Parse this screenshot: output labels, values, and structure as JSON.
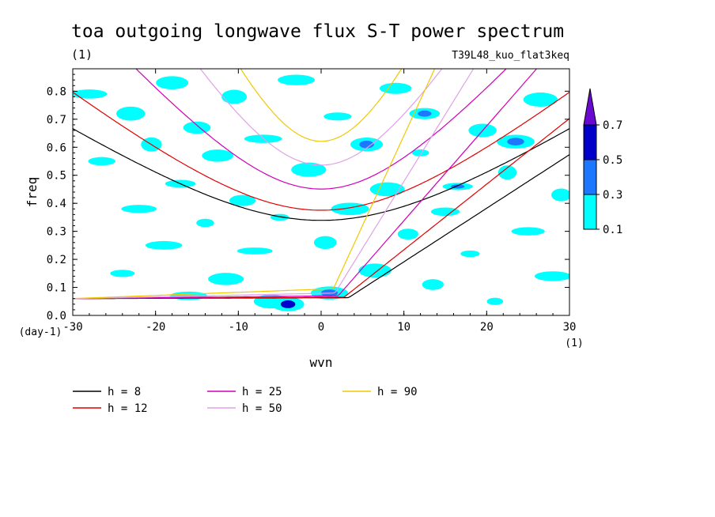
{
  "chart_data": {
    "type": "contour",
    "title": "toa outgoing longwave flux S-T power spectrum",
    "subtitle_left": "(1)",
    "subtitle_right": "T39L48_kuo_flat3keq",
    "xlabel": "wvn",
    "ylabel": "freq",
    "x_unit_label": "(1)",
    "y_unit_label": "(day-1)",
    "xlim": [
      -30,
      30
    ],
    "ylim": [
      0,
      0.88
    ],
    "x_ticks": [
      -30,
      -20,
      -10,
      0,
      10,
      20,
      30
    ],
    "x_tick_labels": [
      "-30",
      "-20",
      "-10",
      "0",
      "10",
      "20",
      "30"
    ],
    "y_ticks": [
      0,
      0.1,
      0.2,
      0.3,
      0.4,
      0.5,
      0.6,
      0.7,
      0.8
    ],
    "y_tick_labels": [
      "0.0",
      "0.1",
      "0.2",
      "0.3",
      "0.4",
      "0.5",
      "0.6",
      "0.7",
      "0.8"
    ],
    "colorbar": {
      "levels": [
        "0.1",
        "0.3",
        "0.5",
        "0.7"
      ],
      "colors": [
        "#00ffff",
        "#1e78ff",
        "#0000c8",
        "#6a0ad0"
      ]
    },
    "dispersion_curves": [
      {
        "h": 8,
        "label": "h =  8",
        "color": "#000000"
      },
      {
        "h": 12,
        "label": "h = 12",
        "color": "#e00000"
      },
      {
        "h": 25,
        "label": "h = 25",
        "color": "#d000b8"
      },
      {
        "h": 50,
        "label": "h = 50",
        "color": "#e0a0e8"
      },
      {
        "h": 90,
        "label": "h = 90",
        "color": "#f0c800"
      }
    ],
    "spectrum_blobs": [
      {
        "x": -28.0,
        "y": 0.79,
        "level": 0
      },
      {
        "x": -26.5,
        "y": 0.55,
        "level": 0
      },
      {
        "x": -24.0,
        "y": 0.15,
        "level": 0
      },
      {
        "x": -23.0,
        "y": 0.72,
        "level": 0
      },
      {
        "x": -22.0,
        "y": 0.38,
        "level": 0
      },
      {
        "x": -20.5,
        "y": 0.61,
        "level": 0
      },
      {
        "x": -19.0,
        "y": 0.25,
        "level": 0
      },
      {
        "x": -18.0,
        "y": 0.83,
        "level": 0
      },
      {
        "x": -17.0,
        "y": 0.47,
        "level": 0
      },
      {
        "x": -16.0,
        "y": 0.07,
        "level": 0
      },
      {
        "x": -15.0,
        "y": 0.67,
        "level": 0
      },
      {
        "x": -14.0,
        "y": 0.33,
        "level": 0
      },
      {
        "x": -12.5,
        "y": 0.57,
        "level": 0
      },
      {
        "x": -11.5,
        "y": 0.13,
        "level": 0
      },
      {
        "x": -10.5,
        "y": 0.78,
        "level": 0
      },
      {
        "x": -9.5,
        "y": 0.41,
        "level": 0
      },
      {
        "x": -8.0,
        "y": 0.23,
        "level": 0
      },
      {
        "x": -7.0,
        "y": 0.63,
        "level": 0
      },
      {
        "x": -6.0,
        "y": 0.05,
        "level": 0
      },
      {
        "x": -4.0,
        "y": 0.04,
        "level": 2
      },
      {
        "x": -5.0,
        "y": 0.35,
        "level": 0
      },
      {
        "x": -3.0,
        "y": 0.84,
        "level": 0
      },
      {
        "x": -1.5,
        "y": 0.52,
        "level": 0
      },
      {
        "x": 0.5,
        "y": 0.26,
        "level": 0
      },
      {
        "x": 1.0,
        "y": 0.08,
        "level": 1
      },
      {
        "x": 2.0,
        "y": 0.71,
        "level": 0
      },
      {
        "x": 3.5,
        "y": 0.38,
        "level": 0
      },
      {
        "x": 5.5,
        "y": 0.61,
        "level": 1
      },
      {
        "x": 6.5,
        "y": 0.16,
        "level": 0
      },
      {
        "x": 8.0,
        "y": 0.45,
        "level": 0
      },
      {
        "x": 9.0,
        "y": 0.81,
        "level": 0
      },
      {
        "x": 10.5,
        "y": 0.29,
        "level": 0
      },
      {
        "x": 12.0,
        "y": 0.58,
        "level": 0
      },
      {
        "x": 12.5,
        "y": 0.72,
        "level": 1
      },
      {
        "x": 13.5,
        "y": 0.11,
        "level": 0
      },
      {
        "x": 15.0,
        "y": 0.37,
        "level": 0
      },
      {
        "x": 16.5,
        "y": 0.46,
        "level": 1
      },
      {
        "x": 18.0,
        "y": 0.22,
        "level": 0
      },
      {
        "x": 19.5,
        "y": 0.66,
        "level": 0
      },
      {
        "x": 21.0,
        "y": 0.05,
        "level": 0
      },
      {
        "x": 22.5,
        "y": 0.51,
        "level": 0
      },
      {
        "x": 23.5,
        "y": 0.62,
        "level": 1
      },
      {
        "x": 25.0,
        "y": 0.3,
        "level": 0
      },
      {
        "x": 26.5,
        "y": 0.77,
        "level": 0
      },
      {
        "x": 28.0,
        "y": 0.14,
        "level": 0
      },
      {
        "x": 29.0,
        "y": 0.43,
        "level": 0
      }
    ]
  }
}
